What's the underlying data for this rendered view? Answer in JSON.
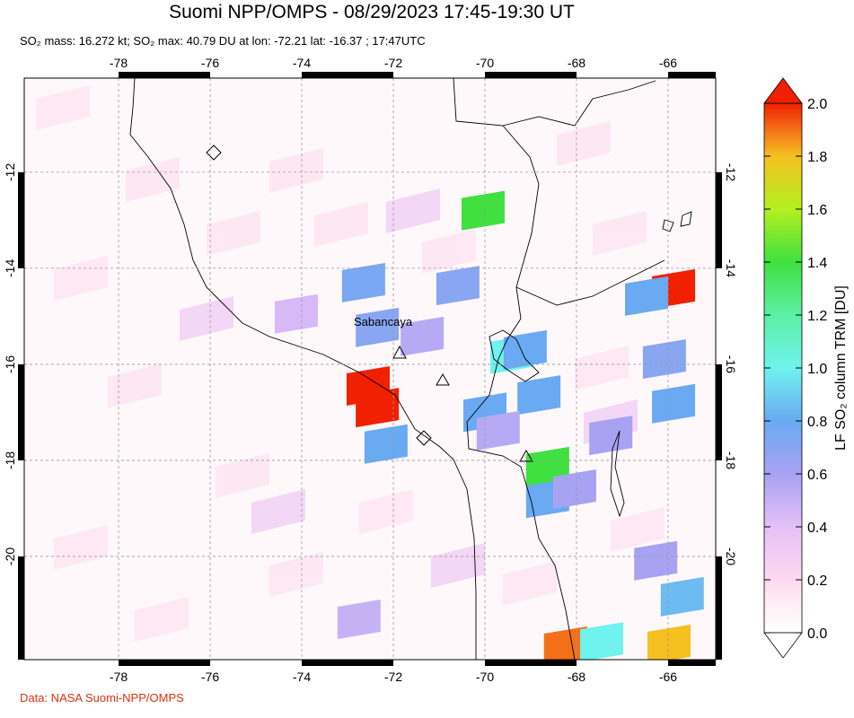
{
  "map": {
    "title": "Suomi NPP/OMPS - 08/29/2023 17:45-19:30 UT",
    "subtitle": "SO₂ mass: 16.272 kt; SO₂ max: 40.79 DU at lon: -72.21 lat: -16.37 ; 17:47UTC",
    "credit": "Data: NASA Suomi-NPP/OMPS",
    "volcano_label": "Sabancaya",
    "lonlim": [
      -80.06,
      -64.96
    ],
    "latlim": [
      -22.15,
      -10.04
    ],
    "lonticks": [
      -78,
      -76,
      -74,
      -72,
      -70,
      -68,
      -66
    ],
    "latticks": [
      -12,
      -14,
      -16,
      -18,
      -20
    ],
    "grid": true,
    "colorbar": {
      "label": "LF SO₂ column TRM [DU]",
      "lim": [
        0,
        2
      ],
      "ticks": [
        {
          "value": 0,
          "label": "0.0"
        },
        0.2,
        0.4,
        0.6,
        0.8,
        {
          "value": 1,
          "label": "1.0"
        },
        1.2,
        1.4,
        1.6,
        1.8,
        {
          "value": 2,
          "label": "2.0"
        }
      ]
    },
    "pixels": [
      {
        "lon": -72.55,
        "lat": -16.45,
        "value": 2.0
      },
      {
        "lon": -72.35,
        "lat": -16.9,
        "value": 2.0
      },
      {
        "lon": -65.88,
        "lat": -14.43,
        "value": 2.0
      },
      {
        "lon": -70.04,
        "lat": -12.8,
        "value": 1.4
      },
      {
        "lon": -68.63,
        "lat": -18.13,
        "value": 1.4
      },
      {
        "lon": -69.41,
        "lat": -15.79,
        "value": 1.0
      },
      {
        "lon": -68.24,
        "lat": -21.87,
        "value": 1.9
      },
      {
        "lon": -65.98,
        "lat": -21.83,
        "value": 1.8
      },
      {
        "lon": -67.45,
        "lat": -21.78,
        "value": 1.0
      },
      {
        "lon": -72.65,
        "lat": -14.3,
        "value": 0.75
      },
      {
        "lon": -72.35,
        "lat": -15.23,
        "value": 0.7
      },
      {
        "lon": -70.59,
        "lat": -14.36,
        "value": 0.7
      },
      {
        "lon": -69.12,
        "lat": -15.7,
        "value": 0.8
      },
      {
        "lon": -68.82,
        "lat": -16.64,
        "value": 0.8
      },
      {
        "lon": -70.0,
        "lat": -17.0,
        "value": 0.8
      },
      {
        "lon": -66.47,
        "lat": -14.58,
        "value": 0.8
      },
      {
        "lon": -66.08,
        "lat": -15.89,
        "value": 0.7
      },
      {
        "lon": -65.88,
        "lat": -16.82,
        "value": 0.8
      },
      {
        "lon": -68.63,
        "lat": -18.79,
        "value": 0.8
      },
      {
        "lon": -72.16,
        "lat": -17.66,
        "value": 0.8
      },
      {
        "lon": -65.69,
        "lat": -20.84,
        "value": 0.85
      },
      {
        "lon": -67.25,
        "lat": -17.48,
        "value": 0.6
      },
      {
        "lon": -66.27,
        "lat": -20.09,
        "value": 0.6
      },
      {
        "lon": -69.71,
        "lat": -17.38,
        "value": 0.55
      },
      {
        "lon": -71.37,
        "lat": -15.42,
        "value": 0.55
      },
      {
        "lon": -74.12,
        "lat": -14.95,
        "value": 0.45
      },
      {
        "lon": -68.04,
        "lat": -18.6,
        "value": 0.6
      },
      {
        "lon": -72.75,
        "lat": -21.31,
        "value": 0.5
      }
    ]
  }
}
